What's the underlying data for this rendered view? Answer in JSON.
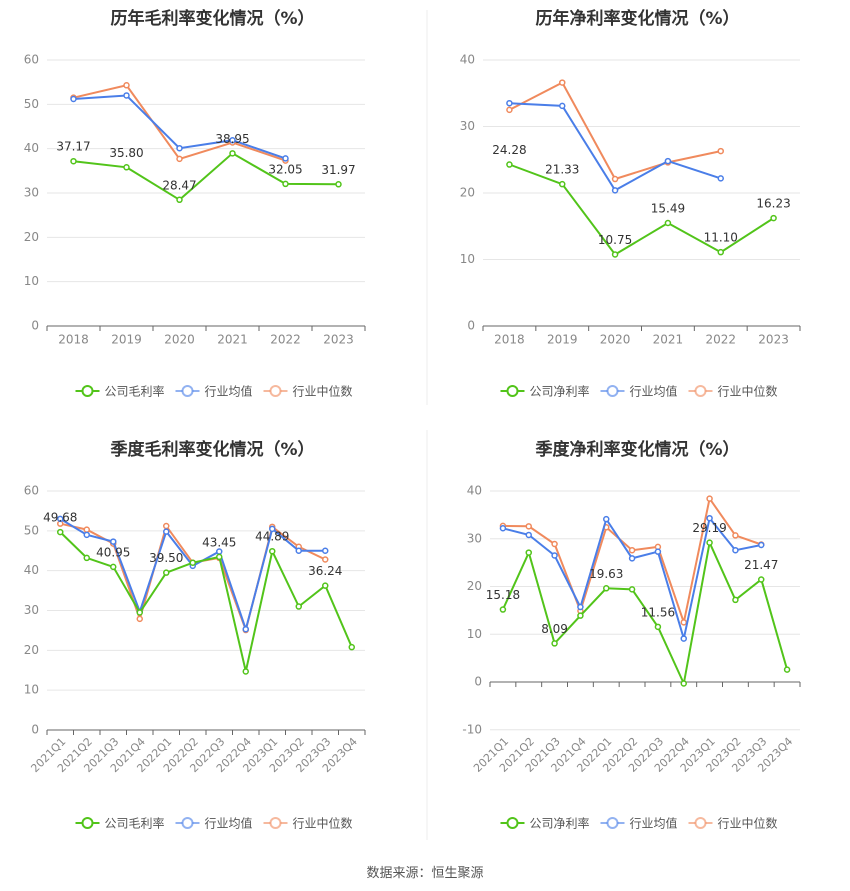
{
  "footer": {
    "source": "数据来源：恒生聚源"
  },
  "colors": {
    "company": "#52c41a",
    "industry_avg": "#4a7ee8",
    "industry_median": "#f08a5d",
    "grid": "#e6e6e6",
    "axis_text": "#888888",
    "title": "#333333"
  },
  "chart_data": [
    {
      "id": "annual-gross",
      "type": "line",
      "title": "历年毛利率变化情况（%）",
      "categories": [
        "2018",
        "2019",
        "2020",
        "2021",
        "2022",
        "2023"
      ],
      "ylim": [
        0,
        60
      ],
      "yticks": [
        0,
        10,
        20,
        30,
        40,
        50,
        60
      ],
      "grid": true,
      "legend": "bottom",
      "series": [
        {
          "name": "公司毛利率",
          "role": "company",
          "values": [
            37.17,
            35.8,
            28.47,
            38.95,
            32.05,
            31.97
          ],
          "labels": [
            "37.17",
            "35.80",
            "28.47",
            "38.95",
            "32.05",
            "31.97"
          ]
        },
        {
          "name": "行业均值",
          "role": "industry_avg",
          "values": [
            51.2,
            52.0,
            40.1,
            41.9,
            37.8,
            null
          ]
        },
        {
          "name": "行业中位数",
          "role": "industry_median",
          "values": [
            51.5,
            54.3,
            37.7,
            41.4,
            37.3,
            null
          ]
        }
      ]
    },
    {
      "id": "annual-net",
      "type": "line",
      "title": "历年净利率变化情况（%）",
      "categories": [
        "2018",
        "2019",
        "2020",
        "2021",
        "2022",
        "2023"
      ],
      "ylim": [
        0,
        40
      ],
      "yticks": [
        0,
        10,
        20,
        30,
        40
      ],
      "grid": true,
      "legend": "bottom",
      "series": [
        {
          "name": "公司净利率",
          "role": "company",
          "values": [
            24.28,
            21.33,
            10.75,
            15.49,
            11.1,
            16.23
          ],
          "labels": [
            "24.28",
            "21.33",
            "10.75",
            "15.49",
            "11.10",
            "16.23"
          ]
        },
        {
          "name": "行业均值",
          "role": "industry_avg",
          "values": [
            33.5,
            33.1,
            20.4,
            24.8,
            22.2,
            null
          ]
        },
        {
          "name": "行业中位数",
          "role": "industry_median",
          "values": [
            32.5,
            36.6,
            22.1,
            24.6,
            26.3,
            null
          ]
        }
      ]
    },
    {
      "id": "quarterly-gross",
      "type": "line",
      "title": "季度毛利率变化情况（%）",
      "categories": [
        "2021Q1",
        "2021Q2",
        "2021Q3",
        "2021Q4",
        "2022Q1",
        "2022Q2",
        "2022Q3",
        "2022Q4",
        "2023Q1",
        "2023Q2",
        "2023Q3",
        "2023Q4"
      ],
      "ylim": [
        0,
        60
      ],
      "yticks": [
        0,
        10,
        20,
        30,
        40,
        50,
        60
      ],
      "grid": true,
      "legend": "bottom",
      "series": [
        {
          "name": "公司毛利率",
          "role": "company",
          "values": [
            49.68,
            43.2,
            40.95,
            29.5,
            39.5,
            42.0,
            43.45,
            14.7,
            44.89,
            31.0,
            36.24,
            20.8
          ],
          "labels": [
            "49.68",
            "",
            "40.95",
            "",
            "39.50",
            "",
            "43.45",
            "",
            "44.89",
            "",
            "36.24",
            ""
          ]
        },
        {
          "name": "行业均值",
          "role": "industry_avg",
          "values": [
            53.0,
            49.0,
            47.3,
            29.7,
            49.8,
            41.2,
            44.8,
            25.3,
            50.5,
            45.0,
            45.0,
            null
          ]
        },
        {
          "name": "行业中位数",
          "role": "industry_median",
          "values": [
            51.8,
            50.3,
            46.8,
            27.9,
            51.2,
            42.0,
            43.2,
            25.1,
            51.0,
            46.0,
            42.8,
            null
          ]
        }
      ]
    },
    {
      "id": "quarterly-net",
      "type": "line",
      "title": "季度净利率变化情况（%）",
      "categories": [
        "2021Q1",
        "2021Q2",
        "2021Q3",
        "2021Q4",
        "2022Q1",
        "2022Q2",
        "2022Q3",
        "2022Q4",
        "2023Q1",
        "2023Q2",
        "2023Q3",
        "2023Q4"
      ],
      "ylim": [
        -10,
        40
      ],
      "yticks": [
        -10,
        0,
        10,
        20,
        30,
        40
      ],
      "grid": true,
      "legend": "bottom",
      "series": [
        {
          "name": "公司净利率",
          "role": "company",
          "values": [
            15.18,
            27.1,
            8.09,
            13.9,
            19.63,
            19.4,
            11.56,
            -0.3,
            29.19,
            17.2,
            21.47,
            2.6
          ],
          "labels": [
            "15.18",
            "",
            "8.09",
            "",
            "19.63",
            "",
            "11.56",
            "",
            "29.19",
            "",
            "21.47",
            ""
          ]
        },
        {
          "name": "行业均值",
          "role": "industry_avg",
          "values": [
            32.2,
            30.8,
            26.5,
            15.7,
            34.1,
            25.9,
            27.3,
            9.1,
            34.3,
            27.6,
            28.7,
            null
          ]
        },
        {
          "name": "行业中位数",
          "role": "industry_median",
          "values": [
            32.7,
            32.6,
            28.9,
            14.9,
            32.4,
            27.6,
            28.3,
            12.5,
            38.4,
            30.7,
            28.8,
            null
          ]
        }
      ]
    }
  ]
}
